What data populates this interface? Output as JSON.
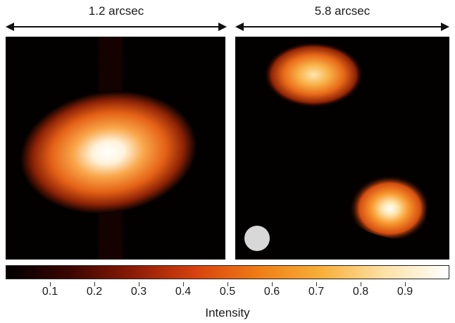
{
  "left_panel": {
    "scale_label": "1.2 arcsec"
  },
  "right_panel": {
    "scale_label": "5.8 arcsec"
  },
  "colorbar": {
    "title": "Intensity",
    "ticks": [
      "0.1",
      "0.2",
      "0.3",
      "0.4",
      "0.5",
      "0.6",
      "0.7",
      "0.8",
      "0.9"
    ],
    "colors": [
      "#000000",
      "#3a0602",
      "#8c1b06",
      "#d8420f",
      "#f07d17",
      "#f8b03a",
      "#fde2a8",
      "#ffffff"
    ]
  },
  "beam_marker_color": "#d8d8d8"
}
